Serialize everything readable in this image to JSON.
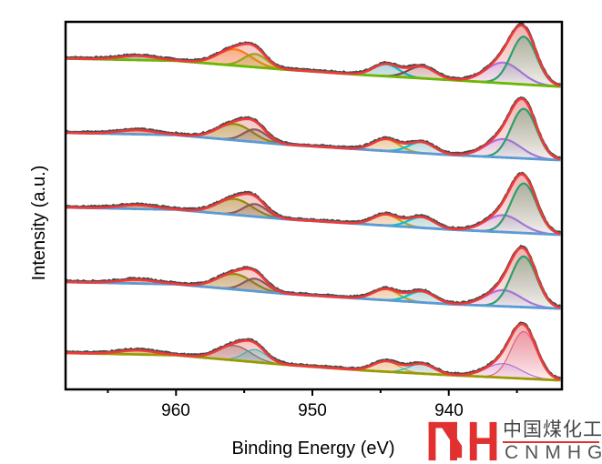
{
  "chart_data": {
    "type": "line",
    "title": "",
    "xlabel": "Binding Energy (eV)",
    "ylabel": "Intensity (a.u.)",
    "xlim": [
      968.1,
      931.7
    ],
    "x_reversed": true,
    "ylim": [
      0,
      100
    ],
    "x_ticks": [
      960,
      950,
      940
    ],
    "x_minor_ticks": [
      965,
      955,
      945,
      935
    ],
    "y_ticks": [],
    "grid": false,
    "legend": "none",
    "raw_color": "#4a4a4a",
    "envelope_color": "#f03a3a",
    "spectra": [
      {
        "offset": 90,
        "background": [
          [
            968,
            0
          ],
          [
            960,
            -0.6
          ],
          [
            952,
            -3
          ],
          [
            946,
            -4.5
          ],
          [
            940,
            -5.8
          ],
          [
            932,
            -7.6
          ]
        ],
        "background_color": "#6cb800",
        "components": [
          {
            "center": 962.8,
            "height": 1.1,
            "fwhm": 3.2,
            "color": "#5b9bd5"
          },
          {
            "center": 955.7,
            "height": 4.4,
            "fwhm": 2.9,
            "color": "#ff7a10"
          },
          {
            "center": 954.2,
            "height": 3.6,
            "fwhm": 2.0,
            "color": "#a0a020"
          },
          {
            "center": 944.6,
            "height": 3.3,
            "fwhm": 2.2,
            "color": "#00c4cc"
          },
          {
            "center": 942.0,
            "height": 3.2,
            "fwhm": 2.3,
            "color": "#7a4a4a"
          },
          {
            "center": 936.0,
            "height": 5.6,
            "fwhm": 3.0,
            "color": "#b070e0"
          },
          {
            "center": 934.5,
            "height": 13.0,
            "fwhm": 2.2,
            "color": "#2aa06a"
          }
        ]
      },
      {
        "offset": 69.8,
        "background": [
          [
            968,
            0
          ],
          [
            960,
            -0.6
          ],
          [
            952,
            -3.2
          ],
          [
            946,
            -4.6
          ],
          [
            940,
            -6
          ],
          [
            932,
            -7.4
          ]
        ],
        "background_color": "#5b9bd5",
        "components": [
          {
            "center": 962.8,
            "height": 1.1,
            "fwhm": 3.2,
            "color": "#ff7a10"
          },
          {
            "center": 955.7,
            "height": 4.4,
            "fwhm": 3.0,
            "color": "#8f8f00"
          },
          {
            "center": 954.2,
            "height": 3.4,
            "fwhm": 2.0,
            "color": "#8a5a5a"
          },
          {
            "center": 944.6,
            "height": 3.2,
            "fwhm": 2.2,
            "color": "#d4a017"
          },
          {
            "center": 942.0,
            "height": 3.0,
            "fwhm": 2.2,
            "color": "#00c4cc"
          },
          {
            "center": 936.0,
            "height": 5.0,
            "fwhm": 3.0,
            "color": "#b070e0"
          },
          {
            "center": 934.5,
            "height": 13.5,
            "fwhm": 2.2,
            "color": "#2aa06a"
          }
        ]
      },
      {
        "offset": 49.5,
        "background": [
          [
            968,
            0
          ],
          [
            960,
            -0.6
          ],
          [
            952,
            -3.2
          ],
          [
            946,
            -4.6
          ],
          [
            940,
            -6
          ],
          [
            932,
            -7.4
          ]
        ],
        "background_color": "#5b9bd5",
        "components": [
          {
            "center": 962.8,
            "height": 1.0,
            "fwhm": 3.2,
            "color": "#ff7a10"
          },
          {
            "center": 955.7,
            "height": 4.3,
            "fwhm": 3.0,
            "color": "#8f8f00"
          },
          {
            "center": 954.2,
            "height": 3.4,
            "fwhm": 2.0,
            "color": "#8a5a5a"
          },
          {
            "center": 944.6,
            "height": 3.0,
            "fwhm": 2.2,
            "color": "#d4a017"
          },
          {
            "center": 942.0,
            "height": 2.9,
            "fwhm": 2.2,
            "color": "#00c4cc"
          },
          {
            "center": 936.0,
            "height": 4.6,
            "fwhm": 3.0,
            "color": "#b070e0"
          },
          {
            "center": 934.5,
            "height": 13.5,
            "fwhm": 2.2,
            "color": "#2aa06a"
          }
        ]
      },
      {
        "offset": 29.2,
        "background": [
          [
            968,
            0
          ],
          [
            960,
            -0.6
          ],
          [
            952,
            -3.2
          ],
          [
            946,
            -4.6
          ],
          [
            940,
            -6
          ],
          [
            932,
            -7.2
          ]
        ],
        "background_color": "#5b9bd5",
        "components": [
          {
            "center": 962.8,
            "height": 1.0,
            "fwhm": 3.2,
            "color": "#ff7a10"
          },
          {
            "center": 955.7,
            "height": 4.2,
            "fwhm": 3.0,
            "color": "#8f8f00"
          },
          {
            "center": 954.2,
            "height": 3.4,
            "fwhm": 2.0,
            "color": "#8a5a5a"
          },
          {
            "center": 944.6,
            "height": 3.0,
            "fwhm": 2.2,
            "color": "#d4a017"
          },
          {
            "center": 942.0,
            "height": 3.0,
            "fwhm": 2.2,
            "color": "#00c4cc"
          },
          {
            "center": 936.0,
            "height": 4.4,
            "fwhm": 3.0,
            "color": "#b070e0"
          },
          {
            "center": 934.5,
            "height": 13.8,
            "fwhm": 2.2,
            "color": "#2aa06a"
          }
        ]
      },
      {
        "offset": 9.9,
        "background": [
          [
            968,
            0
          ],
          [
            960,
            -0.6
          ],
          [
            952,
            -3.2
          ],
          [
            946,
            -4.8
          ],
          [
            940,
            -6
          ],
          [
            932,
            -7.4
          ]
        ],
        "background_color": "#9a9a00",
        "components": [
          {
            "center": 962.8,
            "height": 1.1,
            "fwhm": 3.2,
            "color": "#b0a030"
          },
          {
            "center": 955.7,
            "height": 4.0,
            "fwhm": 2.8,
            "color": "#8a5a5a"
          },
          {
            "center": 954.2,
            "height": 3.4,
            "fwhm": 2.0,
            "color": "#40b0b0"
          },
          {
            "center": 944.6,
            "height": 2.8,
            "fwhm": 2.2,
            "color": "#d4a017"
          },
          {
            "center": 942.0,
            "height": 2.6,
            "fwhm": 2.2,
            "color": "#00c4cc"
          },
          {
            "center": 936.0,
            "height": 3.8,
            "fwhm": 3.0,
            "color": "#b070e0"
          },
          {
            "center": 934.5,
            "height": 12.8,
            "fwhm": 2.2,
            "color": "#e06080"
          }
        ]
      }
    ]
  },
  "ticks": {
    "t960": "960",
    "t950": "950",
    "t940": "940"
  },
  "axis": {
    "xlabel": "Binding Energy (eV)",
    "ylabel": "Intensity (a.u.)"
  },
  "watermark": {
    "chinese": "中国煤化工",
    "english": "CNMHG",
    "mark": "MH",
    "brand_color": "#e03030"
  }
}
